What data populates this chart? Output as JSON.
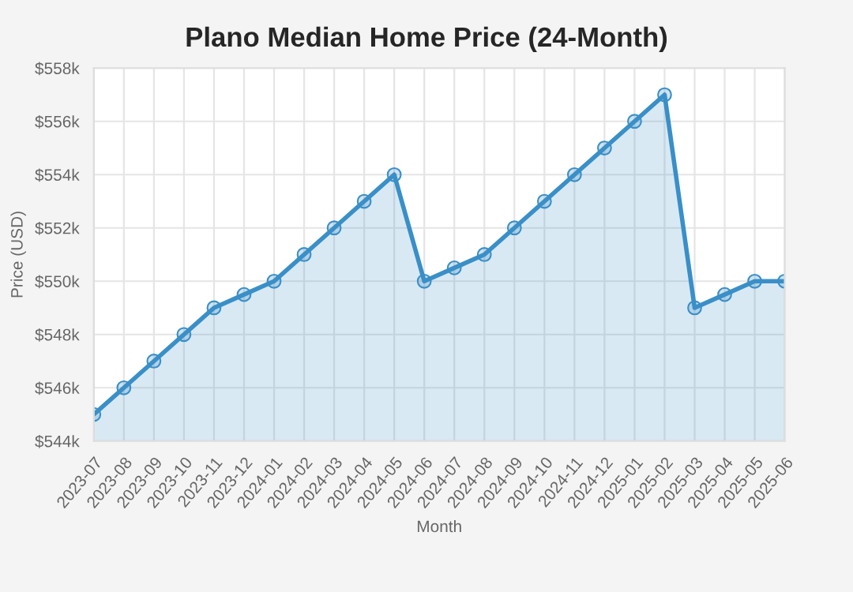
{
  "chart_data": {
    "type": "area",
    "title": "Plano Median Home Price (24-Month)",
    "xlabel": "Month",
    "ylabel": "Price (USD)",
    "categories": [
      "2023-07",
      "2023-08",
      "2023-09",
      "2023-10",
      "2023-11",
      "2023-12",
      "2024-01",
      "2024-02",
      "2024-03",
      "2024-04",
      "2024-05",
      "2024-06",
      "2024-07",
      "2024-08",
      "2024-09",
      "2024-10",
      "2024-11",
      "2024-12",
      "2025-01",
      "2025-02",
      "2025-03",
      "2025-04",
      "2025-05",
      "2025-06"
    ],
    "series": [
      {
        "color": "#3a8fc7",
        "values": [
          545,
          546,
          547,
          548,
          549,
          549.5,
          550,
          551,
          552,
          553,
          554,
          550,
          550.5,
          551,
          552,
          553,
          554,
          555,
          556,
          557,
          549,
          549.5,
          550,
          550
        ]
      }
    ],
    "ylim": [
      544,
      558
    ],
    "yticks": [
      {
        "value": 544,
        "label": "$544k"
      },
      {
        "value": 546,
        "label": "$546k"
      },
      {
        "value": 548,
        "label": "$548k"
      },
      {
        "value": 550,
        "label": "$550k"
      },
      {
        "value": 552,
        "label": "$552k"
      },
      {
        "value": 554,
        "label": "$554k"
      },
      {
        "value": 556,
        "label": "$556k"
      },
      {
        "value": 558,
        "label": "$558k"
      }
    ],
    "grid": true,
    "marker": "circle"
  }
}
